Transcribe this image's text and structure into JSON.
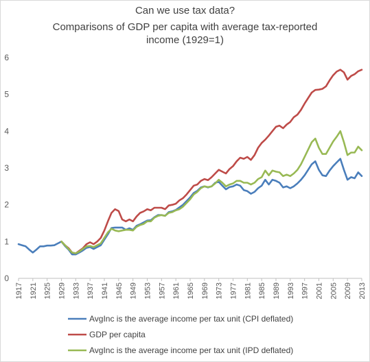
{
  "chart_data": {
    "type": "line",
    "title_lines": [
      "Can we use tax data?",
      "Comparisons of GDP per capita with  average tax-reported",
      "income  (1929=1)"
    ],
    "xlabel": "",
    "ylabel": "",
    "ylim": [
      0,
      6
    ],
    "yticks": [
      "0",
      "1",
      "2",
      "3",
      "4",
      "5",
      "6"
    ],
    "xlim": [
      1917,
      2013
    ],
    "xticks": [
      "1917",
      "1921",
      "1925",
      "1929",
      "1933",
      "1937",
      "1941",
      "1945",
      "1949",
      "1953",
      "1957",
      "1961",
      "1965",
      "1969",
      "1973",
      "1977",
      "1981",
      "1985",
      "1989",
      "1993",
      "1997",
      "2001",
      "2005",
      "2009",
      "2013"
    ],
    "grid": false,
    "legend_position": "bottom",
    "colors": {
      "cpi": "#4a7ebb",
      "gdp": "#be4b48",
      "ipd": "#98b954"
    },
    "series": [
      {
        "key": "cpi",
        "name": "AvgInc is the average income per tax unit (CPI deflated)",
        "points": [
          [
            1917,
            0.93
          ],
          [
            1918,
            0.9
          ],
          [
            1919,
            0.87
          ],
          [
            1920,
            0.78
          ],
          [
            1921,
            0.7
          ],
          [
            1922,
            0.78
          ],
          [
            1923,
            0.87
          ],
          [
            1924,
            0.87
          ],
          [
            1925,
            0.89
          ],
          [
            1926,
            0.89
          ],
          [
            1927,
            0.9
          ],
          [
            1928,
            0.95
          ],
          [
            1929,
            1.0
          ],
          [
            1930,
            0.88
          ],
          [
            1931,
            0.78
          ],
          [
            1932,
            0.65
          ],
          [
            1933,
            0.65
          ],
          [
            1934,
            0.7
          ],
          [
            1935,
            0.76
          ],
          [
            1936,
            0.83
          ],
          [
            1937,
            0.85
          ],
          [
            1938,
            0.8
          ],
          [
            1939,
            0.85
          ],
          [
            1940,
            0.9
          ],
          [
            1941,
            1.05
          ],
          [
            1942,
            1.2
          ],
          [
            1943,
            1.37
          ],
          [
            1944,
            1.38
          ],
          [
            1945,
            1.38
          ],
          [
            1946,
            1.38
          ],
          [
            1947,
            1.32
          ],
          [
            1948,
            1.36
          ],
          [
            1949,
            1.32
          ],
          [
            1950,
            1.43
          ],
          [
            1951,
            1.47
          ],
          [
            1952,
            1.52
          ],
          [
            1953,
            1.57
          ],
          [
            1954,
            1.58
          ],
          [
            1955,
            1.66
          ],
          [
            1956,
            1.72
          ],
          [
            1957,
            1.72
          ],
          [
            1958,
            1.7
          ],
          [
            1959,
            1.8
          ],
          [
            1960,
            1.82
          ],
          [
            1961,
            1.86
          ],
          [
            1962,
            1.93
          ],
          [
            1963,
            2.0
          ],
          [
            1964,
            2.1
          ],
          [
            1965,
            2.2
          ],
          [
            1966,
            2.32
          ],
          [
            1967,
            2.38
          ],
          [
            1968,
            2.47
          ],
          [
            1969,
            2.5
          ],
          [
            1970,
            2.47
          ],
          [
            1971,
            2.5
          ],
          [
            1972,
            2.6
          ],
          [
            1973,
            2.62
          ],
          [
            1974,
            2.52
          ],
          [
            1975,
            2.42
          ],
          [
            1976,
            2.48
          ],
          [
            1977,
            2.5
          ],
          [
            1978,
            2.55
          ],
          [
            1979,
            2.52
          ],
          [
            1980,
            2.4
          ],
          [
            1981,
            2.37
          ],
          [
            1982,
            2.3
          ],
          [
            1983,
            2.35
          ],
          [
            1984,
            2.45
          ],
          [
            1985,
            2.52
          ],
          [
            1986,
            2.68
          ],
          [
            1987,
            2.55
          ],
          [
            1988,
            2.68
          ],
          [
            1989,
            2.65
          ],
          [
            1990,
            2.6
          ],
          [
            1991,
            2.47
          ],
          [
            1992,
            2.5
          ],
          [
            1993,
            2.45
          ],
          [
            1994,
            2.5
          ],
          [
            1995,
            2.58
          ],
          [
            1996,
            2.68
          ],
          [
            1997,
            2.8
          ],
          [
            1998,
            2.95
          ],
          [
            1999,
            3.1
          ],
          [
            2000,
            3.18
          ],
          [
            2001,
            2.95
          ],
          [
            2002,
            2.8
          ],
          [
            2003,
            2.78
          ],
          [
            2004,
            2.93
          ],
          [
            2005,
            3.05
          ],
          [
            2006,
            3.15
          ],
          [
            2007,
            3.25
          ],
          [
            2008,
            2.95
          ],
          [
            2009,
            2.68
          ],
          [
            2010,
            2.75
          ],
          [
            2011,
            2.72
          ],
          [
            2012,
            2.88
          ],
          [
            2013,
            2.78
          ]
        ]
      },
      {
        "key": "gdp",
        "name": "GDP per capita",
        "points": [
          [
            1929,
            1.0
          ],
          [
            1930,
            0.9
          ],
          [
            1931,
            0.82
          ],
          [
            1932,
            0.7
          ],
          [
            1933,
            0.68
          ],
          [
            1934,
            0.75
          ],
          [
            1935,
            0.82
          ],
          [
            1936,
            0.93
          ],
          [
            1937,
            0.98
          ],
          [
            1938,
            0.93
          ],
          [
            1939,
            1.0
          ],
          [
            1940,
            1.1
          ],
          [
            1941,
            1.3
          ],
          [
            1942,
            1.55
          ],
          [
            1943,
            1.78
          ],
          [
            1944,
            1.88
          ],
          [
            1945,
            1.83
          ],
          [
            1946,
            1.6
          ],
          [
            1947,
            1.55
          ],
          [
            1948,
            1.6
          ],
          [
            1949,
            1.55
          ],
          [
            1950,
            1.68
          ],
          [
            1951,
            1.78
          ],
          [
            1952,
            1.82
          ],
          [
            1953,
            1.88
          ],
          [
            1954,
            1.85
          ],
          [
            1955,
            1.92
          ],
          [
            1956,
            1.92
          ],
          [
            1957,
            1.92
          ],
          [
            1958,
            1.88
          ],
          [
            1959,
            1.98
          ],
          [
            1960,
            2.0
          ],
          [
            1961,
            2.03
          ],
          [
            1962,
            2.12
          ],
          [
            1963,
            2.18
          ],
          [
            1964,
            2.28
          ],
          [
            1965,
            2.4
          ],
          [
            1966,
            2.52
          ],
          [
            1967,
            2.55
          ],
          [
            1968,
            2.65
          ],
          [
            1969,
            2.7
          ],
          [
            1970,
            2.67
          ],
          [
            1971,
            2.75
          ],
          [
            1972,
            2.85
          ],
          [
            1973,
            2.95
          ],
          [
            1974,
            2.9
          ],
          [
            1975,
            2.85
          ],
          [
            1976,
            2.97
          ],
          [
            1977,
            3.05
          ],
          [
            1978,
            3.18
          ],
          [
            1979,
            3.28
          ],
          [
            1980,
            3.25
          ],
          [
            1981,
            3.3
          ],
          [
            1982,
            3.22
          ],
          [
            1983,
            3.35
          ],
          [
            1984,
            3.55
          ],
          [
            1985,
            3.68
          ],
          [
            1986,
            3.77
          ],
          [
            1987,
            3.88
          ],
          [
            1988,
            4.0
          ],
          [
            1989,
            4.12
          ],
          [
            1990,
            4.15
          ],
          [
            1991,
            4.08
          ],
          [
            1992,
            4.18
          ],
          [
            1993,
            4.25
          ],
          [
            1994,
            4.38
          ],
          [
            1995,
            4.45
          ],
          [
            1996,
            4.58
          ],
          [
            1997,
            4.75
          ],
          [
            1998,
            4.9
          ],
          [
            1999,
            5.05
          ],
          [
            2000,
            5.12
          ],
          [
            2001,
            5.13
          ],
          [
            2002,
            5.15
          ],
          [
            2003,
            5.22
          ],
          [
            2004,
            5.38
          ],
          [
            2005,
            5.52
          ],
          [
            2006,
            5.62
          ],
          [
            2007,
            5.67
          ],
          [
            2008,
            5.6
          ],
          [
            2009,
            5.4
          ],
          [
            2010,
            5.5
          ],
          [
            2011,
            5.55
          ],
          [
            2012,
            5.63
          ],
          [
            2013,
            5.67
          ]
        ]
      },
      {
        "key": "ipd",
        "name": "AvgInc is the average income per tax unit (IPD deflated)",
        "points": [
          [
            1929,
            1.0
          ],
          [
            1930,
            0.9
          ],
          [
            1931,
            0.8
          ],
          [
            1932,
            0.7
          ],
          [
            1933,
            0.68
          ],
          [
            1934,
            0.73
          ],
          [
            1935,
            0.8
          ],
          [
            1936,
            0.87
          ],
          [
            1937,
            0.88
          ],
          [
            1938,
            0.85
          ],
          [
            1939,
            0.9
          ],
          [
            1940,
            0.95
          ],
          [
            1941,
            1.1
          ],
          [
            1942,
            1.25
          ],
          [
            1943,
            1.35
          ],
          [
            1944,
            1.3
          ],
          [
            1945,
            1.28
          ],
          [
            1946,
            1.3
          ],
          [
            1947,
            1.32
          ],
          [
            1948,
            1.32
          ],
          [
            1949,
            1.3
          ],
          [
            1950,
            1.4
          ],
          [
            1951,
            1.45
          ],
          [
            1952,
            1.48
          ],
          [
            1953,
            1.55
          ],
          [
            1954,
            1.55
          ],
          [
            1955,
            1.65
          ],
          [
            1956,
            1.7
          ],
          [
            1957,
            1.72
          ],
          [
            1958,
            1.7
          ],
          [
            1959,
            1.78
          ],
          [
            1960,
            1.8
          ],
          [
            1961,
            1.85
          ],
          [
            1962,
            1.88
          ],
          [
            1963,
            1.95
          ],
          [
            1964,
            2.05
          ],
          [
            1965,
            2.15
          ],
          [
            1966,
            2.28
          ],
          [
            1967,
            2.35
          ],
          [
            1968,
            2.45
          ],
          [
            1969,
            2.5
          ],
          [
            1970,
            2.48
          ],
          [
            1971,
            2.5
          ],
          [
            1972,
            2.58
          ],
          [
            1973,
            2.68
          ],
          [
            1974,
            2.6
          ],
          [
            1975,
            2.5
          ],
          [
            1976,
            2.55
          ],
          [
            1977,
            2.58
          ],
          [
            1978,
            2.65
          ],
          [
            1979,
            2.65
          ],
          [
            1980,
            2.6
          ],
          [
            1981,
            2.6
          ],
          [
            1982,
            2.55
          ],
          [
            1983,
            2.6
          ],
          [
            1984,
            2.7
          ],
          [
            1985,
            2.75
          ],
          [
            1986,
            2.93
          ],
          [
            1987,
            2.8
          ],
          [
            1988,
            2.93
          ],
          [
            1989,
            2.9
          ],
          [
            1990,
            2.88
          ],
          [
            1991,
            2.78
          ],
          [
            1992,
            2.82
          ],
          [
            1993,
            2.78
          ],
          [
            1994,
            2.85
          ],
          [
            1995,
            2.95
          ],
          [
            1996,
            3.1
          ],
          [
            1997,
            3.3
          ],
          [
            1998,
            3.5
          ],
          [
            1999,
            3.7
          ],
          [
            2000,
            3.8
          ],
          [
            2001,
            3.55
          ],
          [
            2002,
            3.38
          ],
          [
            2003,
            3.38
          ],
          [
            2004,
            3.55
          ],
          [
            2005,
            3.72
          ],
          [
            2006,
            3.85
          ],
          [
            2007,
            4.0
          ],
          [
            2008,
            3.7
          ],
          [
            2009,
            3.35
          ],
          [
            2010,
            3.42
          ],
          [
            2011,
            3.42
          ],
          [
            2012,
            3.58
          ],
          [
            2013,
            3.48
          ]
        ]
      }
    ]
  }
}
